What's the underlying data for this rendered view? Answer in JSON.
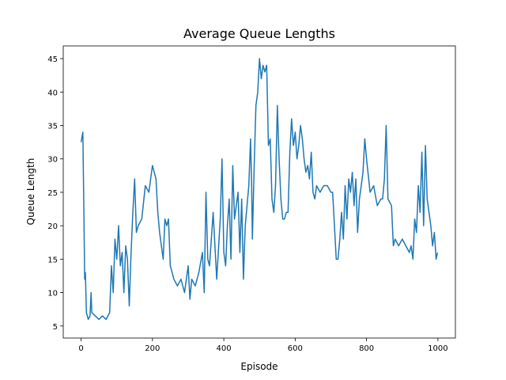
{
  "chart_data": {
    "type": "line",
    "title": "Average Queue Lengths",
    "x_label": "Episode",
    "y_label": "Queue Length",
    "x": [
      0,
      5,
      8,
      10,
      12,
      15,
      20,
      25,
      28,
      30,
      40,
      50,
      60,
      70,
      80,
      85,
      90,
      95,
      100,
      105,
      110,
      115,
      120,
      125,
      130,
      135,
      140,
      145,
      150,
      155,
      160,
      170,
      180,
      190,
      200,
      205,
      210,
      215,
      220,
      225,
      230,
      235,
      240,
      245,
      250,
      255,
      260,
      270,
      280,
      290,
      300,
      305,
      310,
      320,
      330,
      340,
      345,
      350,
      355,
      360,
      370,
      380,
      390,
      395,
      400,
      405,
      410,
      415,
      420,
      425,
      430,
      440,
      445,
      450,
      455,
      460,
      470,
      475,
      478,
      480,
      485,
      490,
      495,
      500,
      505,
      510,
      515,
      520,
      525,
      530,
      535,
      540,
      545,
      550,
      555,
      560,
      565,
      570,
      575,
      580,
      585,
      590,
      595,
      600,
      605,
      610,
      615,
      620,
      625,
      630,
      635,
      640,
      645,
      650,
      655,
      660,
      670,
      680,
      690,
      700,
      705,
      710,
      715,
      720,
      725,
      730,
      735,
      740,
      745,
      750,
      755,
      760,
      765,
      770,
      775,
      780,
      785,
      790,
      795,
      800,
      810,
      820,
      830,
      840,
      845,
      850,
      855,
      860,
      870,
      875,
      880,
      890,
      900,
      910,
      920,
      925,
      930,
      935,
      940,
      945,
      950,
      955,
      960,
      965,
      970,
      975,
      980,
      985,
      990,
      995,
      999
    ],
    "series": [
      {
        "name": "Queue Length",
        "color": "#1f77b4",
        "values": [
          32.5,
          34,
          21,
          12,
          13,
          7,
          6,
          6.5,
          10,
          7,
          6.5,
          6,
          6.5,
          6,
          7,
          14,
          10,
          18,
          15,
          20,
          14,
          16,
          10,
          17,
          15,
          8,
          16,
          22,
          27,
          19,
          20,
          21,
          26,
          25,
          29,
          28,
          27,
          22,
          19,
          17,
          15,
          21,
          20,
          21,
          14,
          13,
          12,
          11,
          12,
          10,
          14,
          9,
          12,
          11,
          13,
          16,
          10,
          25,
          15,
          14,
          22,
          12,
          21,
          30,
          16,
          14,
          20,
          24,
          15,
          29,
          21,
          25,
          16,
          24,
          12,
          20,
          26,
          33,
          26,
          18,
          29,
          38,
          40,
          45,
          42,
          44,
          43,
          44,
          32,
          33,
          24,
          22,
          26,
          38,
          30,
          24,
          21,
          21,
          22,
          22,
          31,
          36,
          32,
          34,
          30,
          32,
          35,
          33,
          30,
          28,
          29,
          27,
          31,
          25,
          24,
          26,
          25,
          26,
          26,
          25,
          25,
          20,
          15,
          15,
          18,
          22,
          18,
          26,
          21,
          27,
          25,
          28,
          23,
          27,
          19,
          24,
          26,
          28,
          33,
          30,
          25,
          26,
          23,
          24,
          24,
          27,
          35,
          24,
          23,
          17,
          18,
          17,
          18,
          17,
          16,
          17,
          15,
          21,
          19,
          26,
          22,
          31,
          20,
          32,
          24,
          22,
          20,
          17,
          19,
          15,
          16
        ]
      }
    ],
    "xlim": [
      -50,
      1049
    ],
    "ylim": [
      3.2,
      46.9
    ],
    "xticks": [
      0,
      200,
      400,
      600,
      800,
      1000
    ],
    "yticks": [
      5,
      10,
      15,
      20,
      25,
      30,
      35,
      40,
      45
    ]
  }
}
